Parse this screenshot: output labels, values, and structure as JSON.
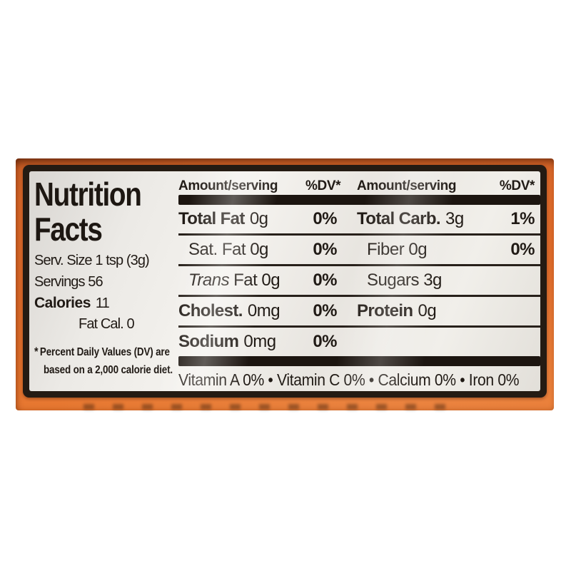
{
  "panel": {
    "title_line1": "Nutrition",
    "title_line2": "Facts",
    "serving_size": "Serv. Size 1 tsp (3g)",
    "servings": "Servings 56",
    "calories_label": "Calories",
    "calories_value": "11",
    "fat_calories": "Fat Cal. 0",
    "footnote": {
      "star": "*",
      "line1": "Percent Daily Values (DV) are",
      "line2": "based on a 2,000 calorie diet."
    },
    "columns": {
      "amount_header": "Amount/serving",
      "dv_header": "%DV*"
    },
    "rows": [
      {
        "left": {
          "strong": "Total Fat",
          "plain": "0g",
          "dv": "0%"
        },
        "right": {
          "strong": "Total Carb.",
          "plain": "3g",
          "dv": "1%"
        }
      },
      {
        "left": {
          "plain": "Sat. Fat 0g",
          "dv": "0%"
        },
        "right": {
          "plain": "Fiber 0g",
          "dv": "0%"
        }
      },
      {
        "left": {
          "em": "Trans",
          "plain": "Fat 0g",
          "dv": "0%"
        },
        "right": {
          "plain": "Sugars 3g",
          "dv": ""
        }
      },
      {
        "left": {
          "strong": "Cholest.",
          "plain": "0mg",
          "dv": "0%"
        },
        "right": {
          "strong": "Protein",
          "plain": "0g",
          "dv": ""
        }
      },
      {
        "left": {
          "strong": "Sodium",
          "plain": "0mg",
          "dv": "0%"
        },
        "right": {
          "plain": "",
          "dv": ""
        }
      }
    ],
    "vitamins": "Vitamin A 0% • Vitamin C 0% • Calcium 0% • Iron 0%"
  },
  "colors": {
    "background": "#ffffff",
    "band_orange": "#e06c2a",
    "panel_border": "#241b13",
    "panel_bg": "#edeae6",
    "ink": "#201a15"
  }
}
